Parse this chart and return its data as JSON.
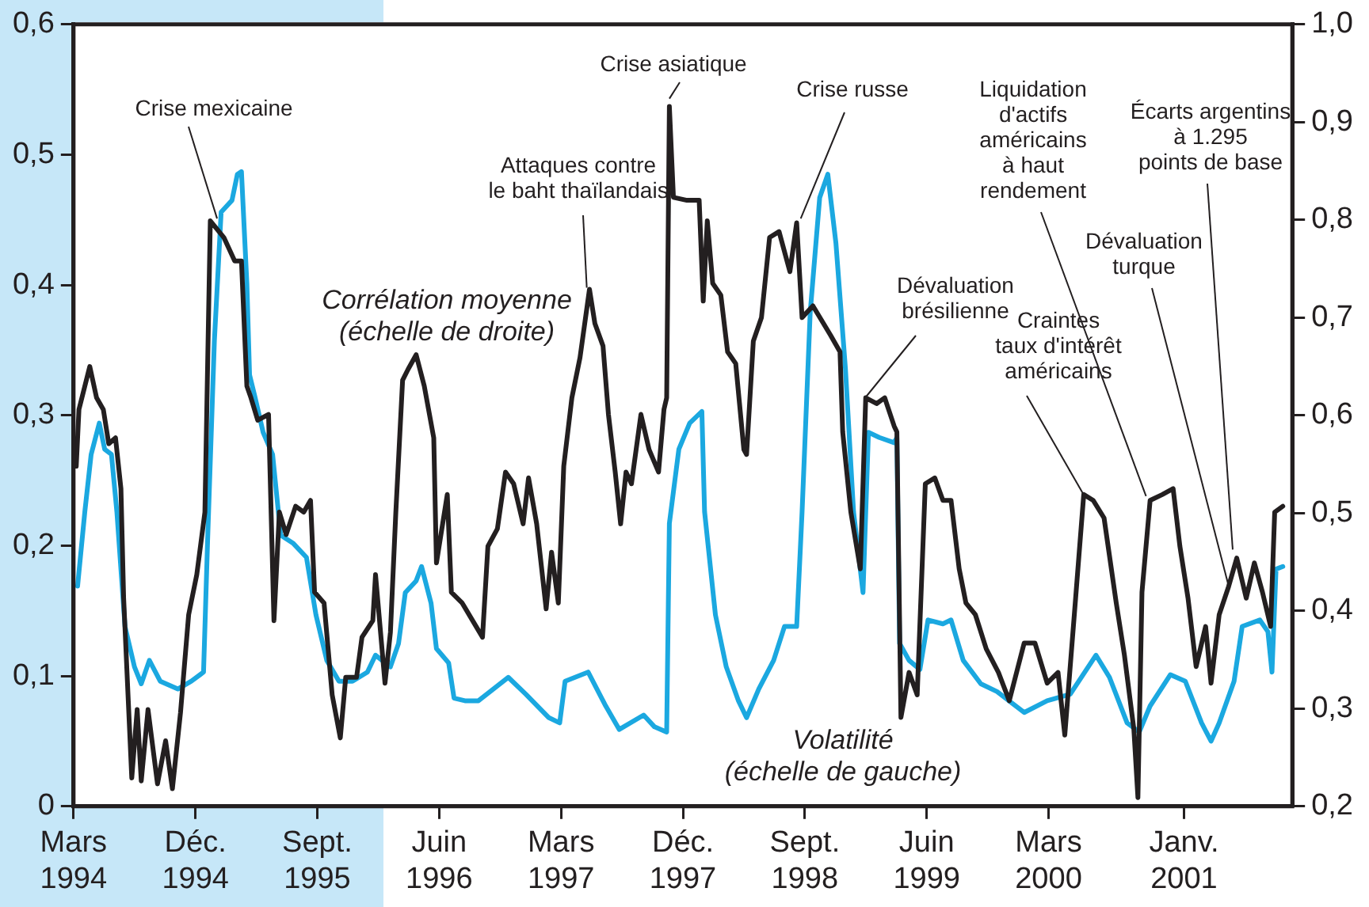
{
  "chart_data": {
    "type": "line",
    "legend": false,
    "grid": false,
    "marker": "none",
    "line_style": "solid",
    "xlim": [
      "1994-03",
      "2001-09"
    ],
    "xticks": [
      {
        "value": "1994-03",
        "label": "Mars\n1994"
      },
      {
        "value": "1994-12",
        "label": "Déc.\n1994"
      },
      {
        "value": "1995-09",
        "label": "Sept.\n1995"
      },
      {
        "value": "1996-06",
        "label": "Juin\n1996"
      },
      {
        "value": "1997-03",
        "label": "Mars\n1997"
      },
      {
        "value": "1997-12",
        "label": "Déc.\n1997"
      },
      {
        "value": "1998-09",
        "label": "Sept.\n1998"
      },
      {
        "value": "1999-06",
        "label": "Juin\n1999"
      },
      {
        "value": "2000-03",
        "label": "Mars\n2000"
      },
      {
        "value": "2001-01",
        "label": "Janv.\n2001"
      }
    ],
    "ylim": [
      0,
      0.6
    ],
    "yticks": [
      {
        "value": 0,
        "label": "0"
      },
      {
        "value": 0.1,
        "label": "0,1"
      },
      {
        "value": 0.2,
        "label": "0,2"
      },
      {
        "value": 0.3,
        "label": "0,3"
      },
      {
        "value": 0.4,
        "label": "0,4"
      },
      {
        "value": 0.5,
        "label": "0,5"
      },
      {
        "value": 0.6,
        "label": "0,6"
      }
    ],
    "y2lim": [
      0.2,
      1.0
    ],
    "y2ticks": [
      {
        "value": 0.2,
        "label": "0,2"
      },
      {
        "value": 0.3,
        "label": "0,3"
      },
      {
        "value": 0.4,
        "label": "0,4"
      },
      {
        "value": 0.5,
        "label": "0,5"
      },
      {
        "value": 0.6,
        "label": "0,6"
      },
      {
        "value": 0.7,
        "label": "0,7"
      },
      {
        "value": 0.8,
        "label": "0,8"
      },
      {
        "value": 0.9,
        "label": "0,9"
      },
      {
        "value": 1.0,
        "label": "1,0"
      }
    ],
    "series": [
      {
        "name": "Volatilité\n(échelle de gauche)",
        "color": "#1ba8e0",
        "axis": "y",
        "x": [
          "1994-03-10",
          "1994-03-26",
          "1994-04-10",
          "1994-04-28",
          "1994-05-10",
          "1994-05-25",
          "1994-06-07",
          "1994-06-25",
          "1994-07-16",
          "1994-08-01",
          "1994-08-19",
          "1994-09-13",
          "1994-10-22",
          "1994-11-22",
          "1994-12-19",
          "1994-12-28",
          "1995-01-13",
          "1995-01-28",
          "1995-02-22",
          "1995-03-04",
          "1995-03-13",
          "1995-03-25",
          "1995-04-01",
          "1995-04-13",
          "1995-05-01",
          "1995-05-22",
          "1995-06-10",
          "1995-07-07",
          "1995-08-07",
          "1995-08-28",
          "1995-09-22",
          "1995-10-19",
          "1995-11-19",
          "1995-12-22",
          "1996-01-10",
          "1996-02-13",
          "1996-03-01",
          "1996-03-16",
          "1996-04-10",
          "1996-04-22",
          "1996-05-13",
          "1996-05-25",
          "1996-06-22",
          "1996-07-04",
          "1996-07-28",
          "1996-08-28",
          "1996-11-04",
          "1996-12-13",
          "1997-02-04",
          "1997-02-28",
          "1997-03-10",
          "1997-05-01",
          "1997-06-10",
          "1997-07-10",
          "1997-09-04",
          "1997-09-28",
          "1997-10-25",
          "1997-11-01",
          "1997-11-22",
          "1997-12-16",
          "1998-01-13",
          "1998-01-19",
          "1998-02-13",
          "1998-03-07",
          "1998-04-04",
          "1998-04-22",
          "1998-05-19",
          "1998-06-22",
          "1998-07-16",
          "1998-08-13",
          "1998-08-25",
          "1998-09-13",
          "1998-10-04",
          "1998-10-22",
          "1998-11-10",
          "1998-12-01",
          "1998-12-19",
          "1999-01-10",
          "1999-01-22",
          "1999-02-16",
          "1999-03-19",
          "1999-03-25",
          "1999-04-01",
          "1999-04-22",
          "1999-05-16",
          "1999-06-04",
          "1999-07-07",
          "1999-07-25",
          "1999-08-22",
          "1999-10-01",
          "1999-11-07",
          "2000-01-07",
          "2000-02-28",
          "2000-04-19",
          "2000-06-16",
          "2000-07-16",
          "2000-08-25",
          "2000-09-22",
          "2000-10-16",
          "2000-12-01",
          "2001-01-04",
          "2001-02-10",
          "2001-03-01",
          "2001-03-19",
          "2001-04-22",
          "2001-05-10",
          "2001-06-19",
          "2001-07-07",
          "2001-07-16",
          "2001-07-25",
          "2001-08-10"
        ],
        "values": [
          0.169,
          0.226,
          0.27,
          0.294,
          0.274,
          0.27,
          0.226,
          0.138,
          0.107,
          0.094,
          0.112,
          0.096,
          0.09,
          0.096,
          0.103,
          0.204,
          0.357,
          0.456,
          0.465,
          0.485,
          0.487,
          0.401,
          0.331,
          0.314,
          0.287,
          0.27,
          0.208,
          0.202,
          0.191,
          0.147,
          0.112,
          0.096,
          0.096,
          0.103,
          0.116,
          0.107,
          0.125,
          0.164,
          0.173,
          0.184,
          0.156,
          0.121,
          0.11,
          0.083,
          0.081,
          0.081,
          0.099,
          0.086,
          0.068,
          0.064,
          0.096,
          0.103,
          0.077,
          0.059,
          0.07,
          0.061,
          0.057,
          0.217,
          0.274,
          0.294,
          0.303,
          0.226,
          0.147,
          0.107,
          0.081,
          0.068,
          0.09,
          0.112,
          0.138,
          0.138,
          0.226,
          0.379,
          0.467,
          0.485,
          0.432,
          0.336,
          0.226,
          0.164,
          0.287,
          0.283,
          0.279,
          0.283,
          0.125,
          0.112,
          0.105,
          0.143,
          0.14,
          0.143,
          0.112,
          0.094,
          0.088,
          0.072,
          0.081,
          0.086,
          0.116,
          0.099,
          0.064,
          0.057,
          0.077,
          0.101,
          0.096,
          0.064,
          0.05,
          0.064,
          0.096,
          0.138,
          0.143,
          0.134,
          0.103,
          0.182,
          0.184
        ]
      },
      {
        "name": "Corrélation moyenne\n(échelle de droite)",
        "color": "#231f20",
        "axis": "y2",
        "x": [
          "1994-03-07",
          "1994-03-13",
          "1994-04-07",
          "1994-04-22",
          "1994-05-07",
          "1994-05-19",
          "1994-06-04",
          "1994-06-16",
          "1994-06-22",
          "1994-07-10",
          "1994-07-22",
          "1994-08-01",
          "1994-08-16",
          "1994-09-07",
          "1994-09-25",
          "1994-10-10",
          "1994-10-28",
          "1994-11-16",
          "1994-12-04",
          "1994-12-22",
          "1995-01-04",
          "1995-02-04",
          "1995-02-28",
          "1995-03-13",
          "1995-03-25",
          "1995-04-04",
          "1995-04-19",
          "1995-05-13",
          "1995-05-25",
          "1995-06-07",
          "1995-06-22",
          "1995-07-13",
          "1995-08-01",
          "1995-08-16",
          "1995-08-25",
          "1995-09-16",
          "1995-10-04",
          "1995-10-22",
          "1995-11-04",
          "1995-11-28",
          "1995-12-10",
          "1996-01-04",
          "1996-01-10",
          "1996-02-01",
          "1996-02-13",
          "1996-02-25",
          "1996-03-10",
          "1996-03-22",
          "1996-04-10",
          "1996-04-28",
          "1996-05-19",
          "1996-05-25",
          "1996-06-19",
          "1996-06-28",
          "1996-07-22",
          "1996-09-07",
          "1996-09-19",
          "1996-10-10",
          "1996-10-28",
          "1996-11-16",
          "1996-12-07",
          "1996-12-19",
          "1997-01-07",
          "1997-01-28",
          "1997-02-10",
          "1997-02-25",
          "1997-03-07",
          "1997-03-25",
          "1997-04-13",
          "1997-05-04",
          "1997-05-16",
          "1997-06-04",
          "1997-06-16",
          "1997-07-01",
          "1997-07-13",
          "1997-07-25",
          "1997-08-07",
          "1997-08-28",
          "1997-09-16",
          "1997-10-07",
          "1997-10-19",
          "1997-10-25",
          "1997-11-01",
          "1997-11-10",
          "1997-12-10",
          "1998-01-07",
          "1998-01-16",
          "1998-01-25",
          "1998-02-07",
          "1998-02-25",
          "1998-03-10",
          "1998-03-28",
          "1998-04-16",
          "1998-04-22",
          "1998-05-07",
          "1998-05-25",
          "1998-06-13",
          "1998-07-04",
          "1998-07-28",
          "1998-08-13",
          "1998-08-25",
          "1998-09-19",
          "1998-10-28",
          "1998-11-19",
          "1998-11-25",
          "1998-12-13",
          "1999-01-04",
          "1999-01-16",
          "1999-02-10",
          "1999-02-28",
          "1999-03-19",
          "1999-03-25",
          "1999-04-04",
          "1999-04-22",
          "1999-05-10",
          "1999-05-28",
          "1999-06-19",
          "1999-07-07",
          "1999-07-25",
          "1999-08-13",
          "1999-08-28",
          "1999-09-19",
          "1999-10-13",
          "1999-11-10",
          "1999-12-04",
          "2000-01-07",
          "2000-02-01",
          "2000-02-28",
          "2000-03-22",
          "2000-04-07",
          "2000-05-01",
          "2000-05-19",
          "2000-06-10",
          "2000-07-04",
          "2000-08-01",
          "2000-08-19",
          "2000-09-10",
          "2000-09-19",
          "2000-09-28",
          "2000-10-16",
          "2000-11-13",
          "2000-12-07",
          "2000-12-22",
          "2001-01-10",
          "2001-01-28",
          "2001-02-19",
          "2001-03-01",
          "2001-03-19",
          "2001-04-10",
          "2001-04-28",
          "2001-05-19",
          "2001-06-07",
          "2001-06-25",
          "2001-07-13",
          "2001-07-22",
          "2001-08-10"
        ],
        "values": [
          0.548,
          0.606,
          0.65,
          0.618,
          0.606,
          0.571,
          0.577,
          0.525,
          0.413,
          0.229,
          0.299,
          0.226,
          0.299,
          0.223,
          0.267,
          0.218,
          0.296,
          0.396,
          0.437,
          0.501,
          0.799,
          0.782,
          0.758,
          0.758,
          0.63,
          0.618,
          0.595,
          0.601,
          0.39,
          0.501,
          0.478,
          0.507,
          0.501,
          0.513,
          0.419,
          0.408,
          0.314,
          0.27,
          0.332,
          0.332,
          0.373,
          0.39,
          0.437,
          0.326,
          0.378,
          0.501,
          0.636,
          0.647,
          0.662,
          0.63,
          0.577,
          0.449,
          0.519,
          0.419,
          0.408,
          0.373,
          0.466,
          0.484,
          0.542,
          0.53,
          0.489,
          0.536,
          0.489,
          0.402,
          0.46,
          0.408,
          0.548,
          0.618,
          0.659,
          0.729,
          0.694,
          0.671,
          0.601,
          0.542,
          0.489,
          0.542,
          0.53,
          0.601,
          0.565,
          0.542,
          0.606,
          0.618,
          0.916,
          0.823,
          0.82,
          0.82,
          0.717,
          0.799,
          0.735,
          0.723,
          0.665,
          0.653,
          0.565,
          0.56,
          0.676,
          0.7,
          0.782,
          0.788,
          0.747,
          0.797,
          0.7,
          0.712,
          0.682,
          0.665,
          0.583,
          0.501,
          0.443,
          0.618,
          0.612,
          0.618,
          0.589,
          0.583,
          0.291,
          0.337,
          0.314,
          0.53,
          0.536,
          0.513,
          0.513,
          0.443,
          0.408,
          0.396,
          0.361,
          0.337,
          0.308,
          0.367,
          0.367,
          0.326,
          0.337,
          0.273,
          0.413,
          0.519,
          0.513,
          0.495,
          0.408,
          0.355,
          0.279,
          0.209,
          0.419,
          0.513,
          0.519,
          0.525,
          0.466,
          0.413,
          0.343,
          0.384,
          0.326,
          0.396,
          0.425,
          0.454,
          0.413,
          0.449,
          0.419,
          0.384,
          0.501,
          0.507
        ]
      }
    ],
    "annotations": [
      {
        "text": "Crise mexicaine",
        "x": "1995-01-19",
        "y": 0.451
      },
      {
        "text": "Attaques contre\nle baht thaïlandais",
        "x": "1997-04-28",
        "y": 0.398
      },
      {
        "text": "Crise asiatique",
        "x": "1997-11-01",
        "y": 0.543
      },
      {
        "text": "Crise russe",
        "x": "1998-08-22",
        "y": 0.451
      },
      {
        "text": "Dévaluation\nbrésilienne",
        "x": "1999-01-16",
        "y": 0.314
      },
      {
        "text": "Craintes\ntaux d'intérêt\naméricains",
        "x": "2000-05-19",
        "y": 0.239
      },
      {
        "text": "Liquidation\nd'actifs\naméricains\nà haut\nrendement",
        "x": "2000-10-07",
        "y": 0.238
      },
      {
        "text": "Dévaluation\nturque",
        "x": "2001-04-10",
        "y": 0.169
      },
      {
        "text": "Écarts argentins\nà 1.295\npoints de base",
        "x": "2001-04-19",
        "y": 0.197
      }
    ]
  }
}
